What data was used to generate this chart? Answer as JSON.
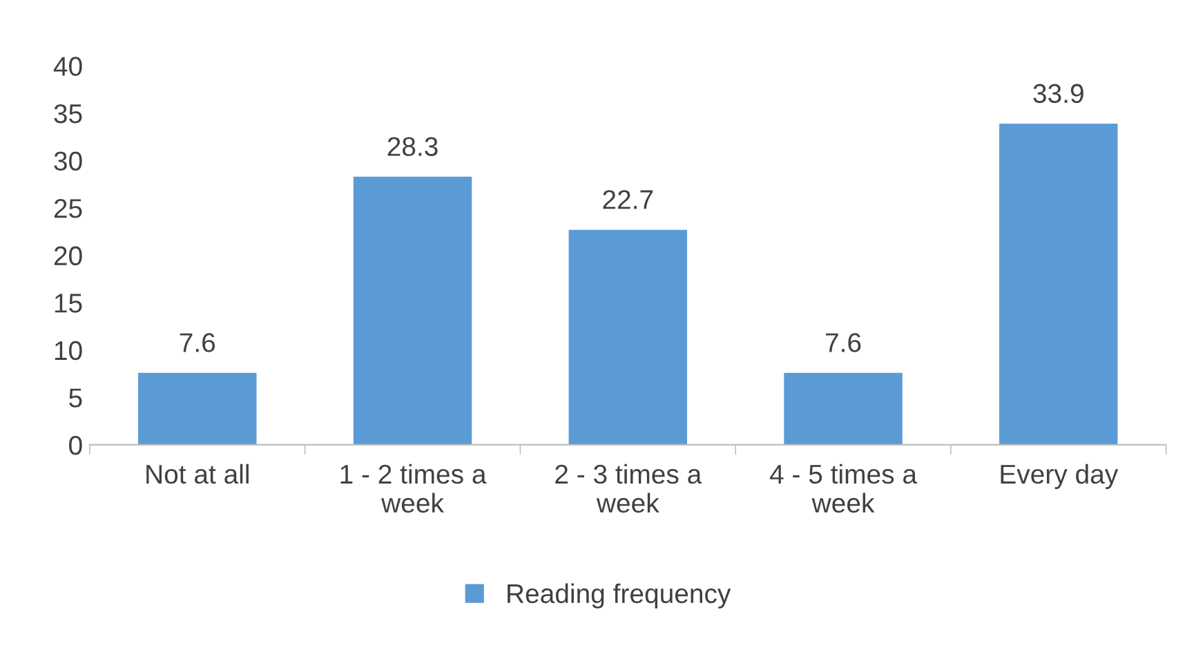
{
  "chart_data": {
    "type": "bar",
    "categories": [
      "Not at all",
      "1 - 2 times a\nweek",
      "2 - 3 times a\nweek",
      "4 - 5 times a\nweek",
      "Every day"
    ],
    "series": [
      {
        "name": "Reading frequency",
        "color": "#5b9bd5",
        "values": [
          7.6,
          28.3,
          22.7,
          7.6,
          33.9
        ]
      }
    ],
    "ylim": [
      0,
      40
    ],
    "yticks": [
      0,
      5,
      10,
      15,
      20,
      25,
      30,
      35,
      40
    ],
    "grid": false,
    "legend": "bottom",
    "data_labels": true
  }
}
